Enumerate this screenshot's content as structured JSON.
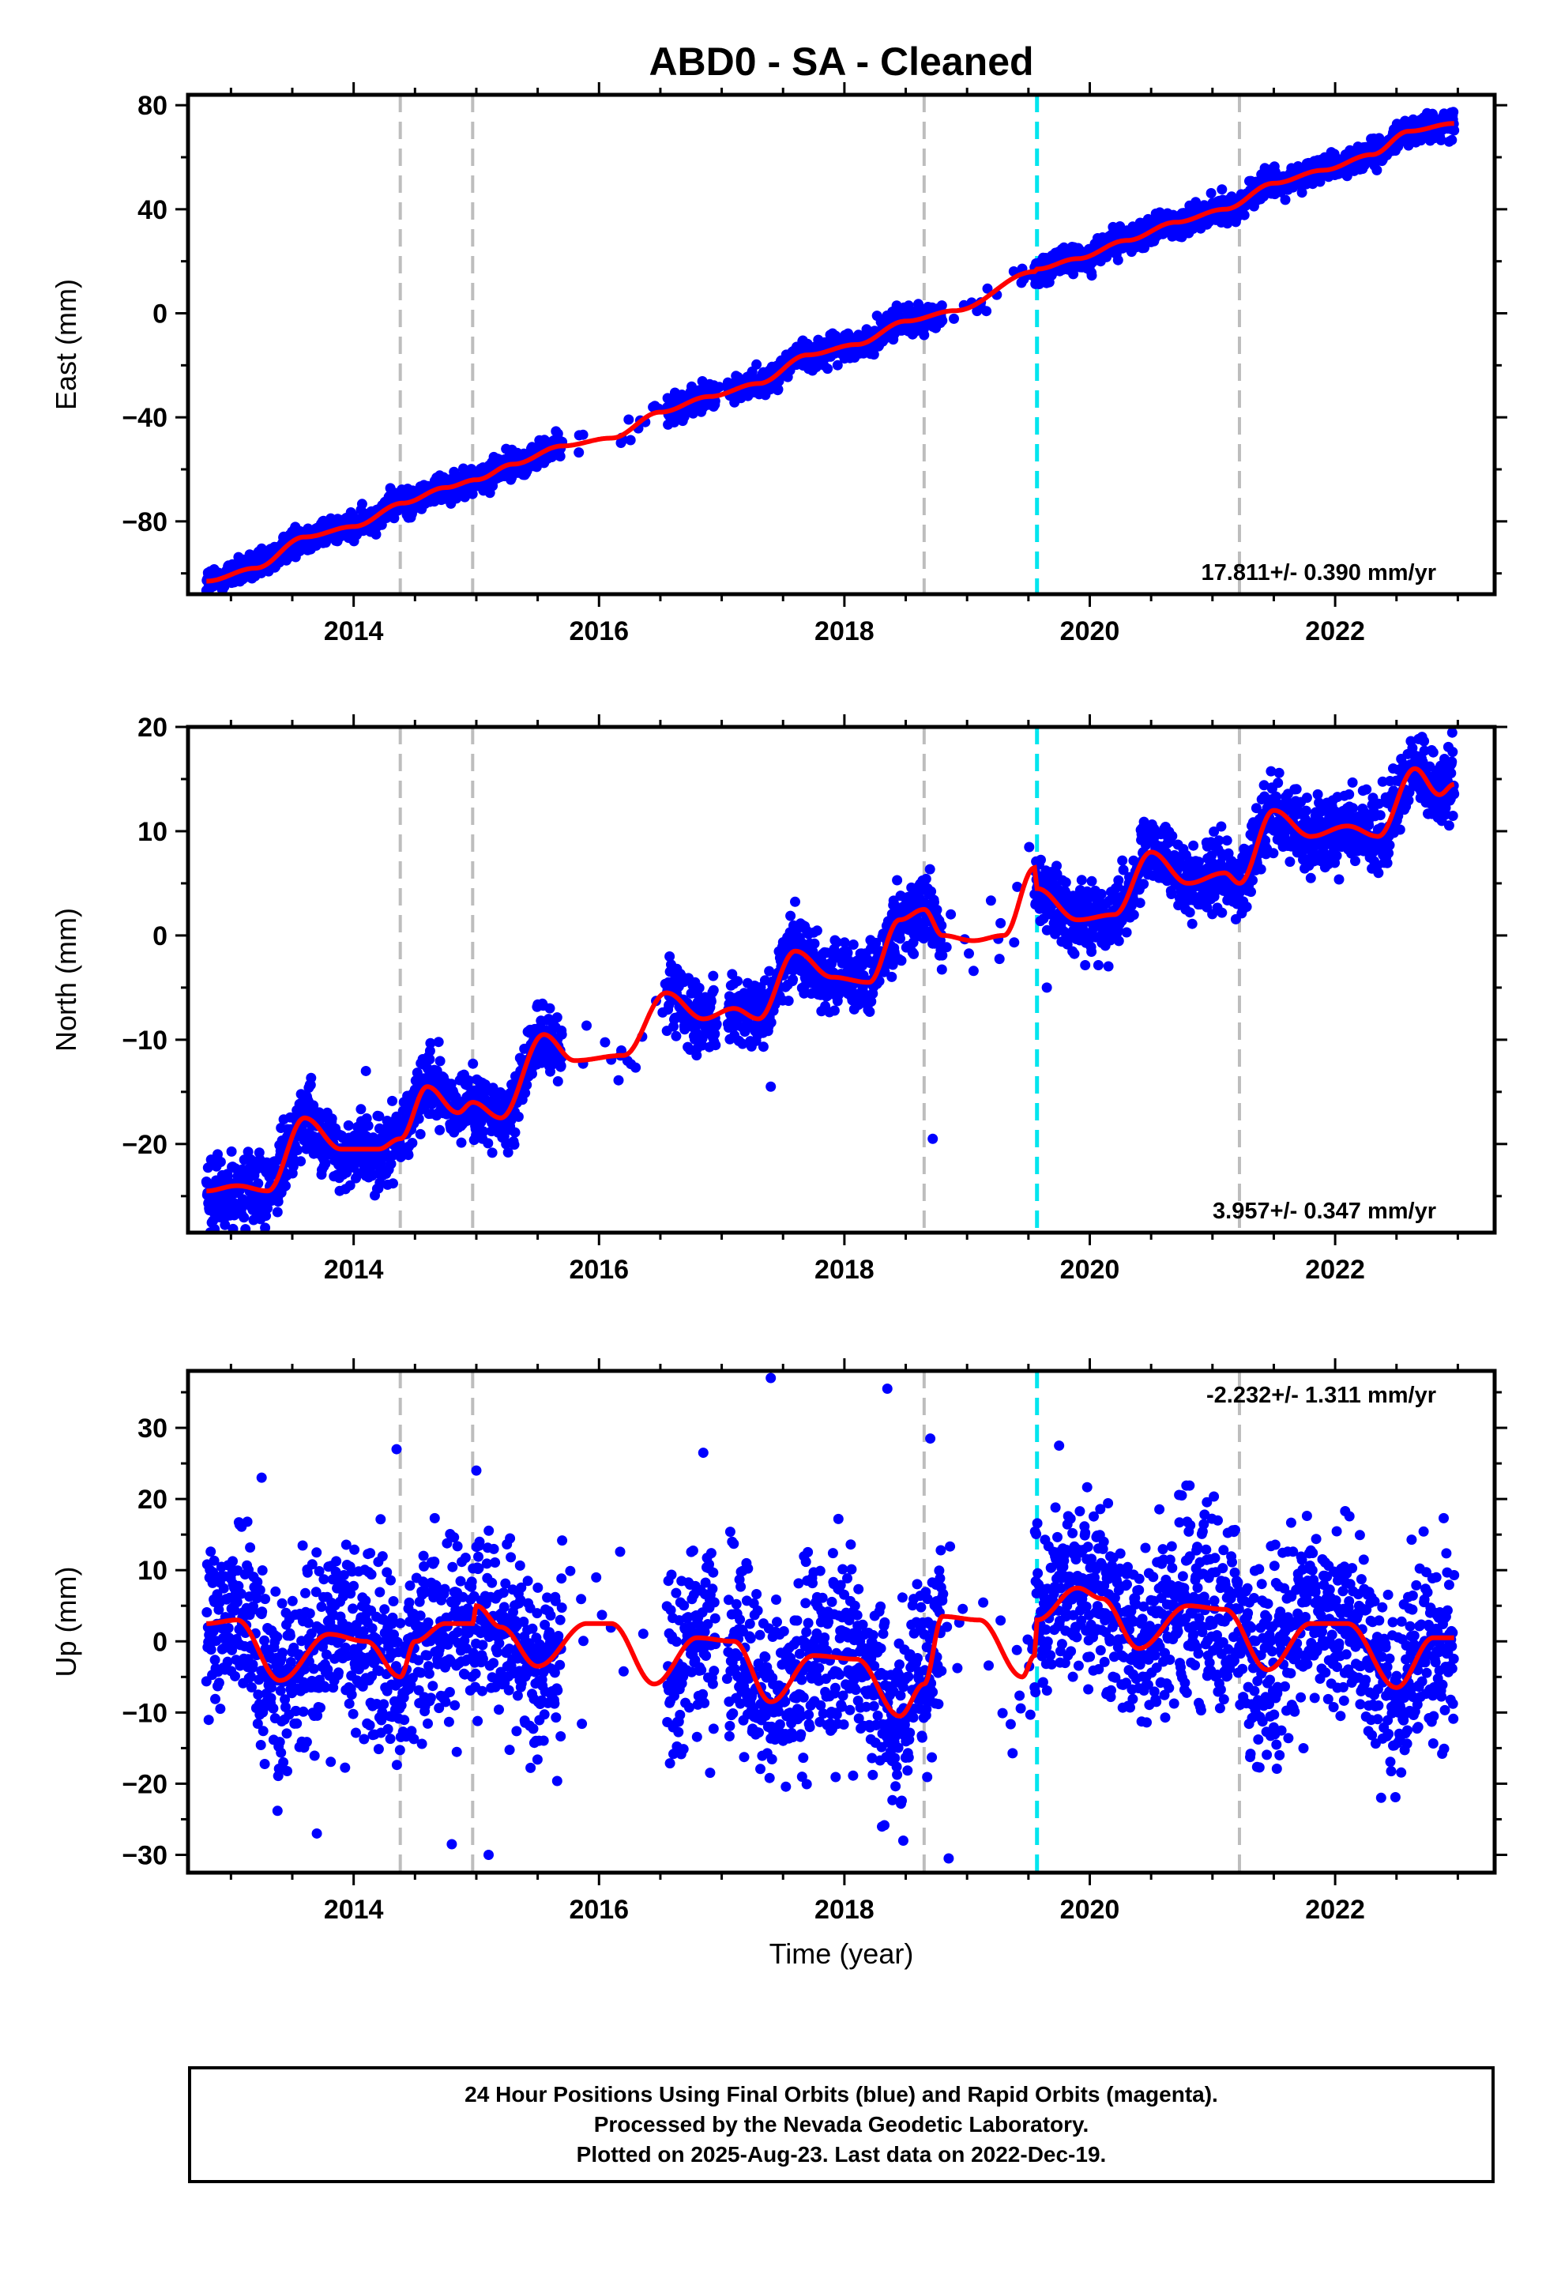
{
  "chart_data": {
    "title": "ABD0  - SA - Cleaned",
    "xlabel": "Time (year)",
    "xlim": [
      2012.65,
      2023.3
    ],
    "xticks": [
      2014,
      2016,
      2018,
      2020,
      2022
    ],
    "x_minor_step": 0.5,
    "vlines_gray": [
      2014.38,
      2014.97,
      2018.65,
      2021.22
    ],
    "vlines_cyan": [
      2019.57
    ],
    "data_span": [
      2012.8,
      2022.97
    ],
    "gaps": [
      [
        2015.7,
        2016.55
      ],
      [
        2016.95,
        2017.05
      ],
      [
        2018.8,
        2019.55
      ]
    ],
    "colors": {
      "points": "#0000ff",
      "model": "#ff0000",
      "gray_line": "#bdbdbd",
      "cyan_line": "#00e5ee"
    },
    "panels": [
      {
        "id": "east",
        "type": "scatter",
        "ylabel": "East (mm)",
        "ylim": [
          -108,
          84
        ],
        "yticks": [
          -80,
          -40,
          0,
          40,
          80
        ],
        "y_minor_step": 20,
        "rate_label": "17.811+/- 0.390 mm/yr",
        "rate_position": "bottom-right",
        "noise": 2.6,
        "model_points": [
          [
            2012.8,
            -103
          ],
          [
            2013.2,
            -98
          ],
          [
            2013.6,
            -86
          ],
          [
            2014.0,
            -82
          ],
          [
            2014.4,
            -73
          ],
          [
            2014.75,
            -67
          ],
          [
            2015.0,
            -64
          ],
          [
            2015.3,
            -58
          ],
          [
            2015.7,
            -51
          ],
          [
            2016.1,
            -48
          ],
          [
            2016.5,
            -38
          ],
          [
            2016.9,
            -32
          ],
          [
            2017.3,
            -27
          ],
          [
            2017.7,
            -16
          ],
          [
            2018.1,
            -12
          ],
          [
            2018.5,
            -3
          ],
          [
            2018.9,
            1
          ],
          [
            2019.55,
            16
          ],
          [
            2019.57,
            17
          ],
          [
            2019.9,
            21
          ],
          [
            2020.3,
            28
          ],
          [
            2020.7,
            35
          ],
          [
            2021.1,
            40
          ],
          [
            2021.5,
            50
          ],
          [
            2021.9,
            55
          ],
          [
            2022.3,
            61
          ],
          [
            2022.6,
            70
          ],
          [
            2022.97,
            73
          ]
        ],
        "series": [
          {
            "name": "Final Orbits",
            "color": "#0000ff",
            "note": "daily positions"
          },
          {
            "name": "Model",
            "color": "#ff0000"
          }
        ]
      },
      {
        "id": "north",
        "type": "scatter",
        "ylabel": "North (mm)",
        "ylim": [
          -28.5,
          20
        ],
        "yticks": [
          -20,
          -10,
          0,
          10,
          20
        ],
        "y_minor_step": 5,
        "rate_label": "3.957+/- 0.347 mm/yr",
        "rate_position": "bottom-right",
        "noise": 1.7,
        "model_points": [
          [
            2012.8,
            -24.5
          ],
          [
            2013.05,
            -24.0
          ],
          [
            2013.3,
            -24.5
          ],
          [
            2013.6,
            -17.5
          ],
          [
            2013.9,
            -20.5
          ],
          [
            2014.2,
            -20.5
          ],
          [
            2014.38,
            -19.5
          ],
          [
            2014.6,
            -14.5
          ],
          [
            2014.85,
            -17.0
          ],
          [
            2014.97,
            -16.0
          ],
          [
            2015.2,
            -17.5
          ],
          [
            2015.55,
            -9.5
          ],
          [
            2015.8,
            -12.0
          ],
          [
            2016.2,
            -11.5
          ],
          [
            2016.55,
            -5.5
          ],
          [
            2016.85,
            -8.0
          ],
          [
            2017.1,
            -7.0
          ],
          [
            2017.3,
            -8.0
          ],
          [
            2017.6,
            -1.5
          ],
          [
            2017.9,
            -4.0
          ],
          [
            2018.2,
            -4.5
          ],
          [
            2018.45,
            1.5
          ],
          [
            2018.65,
            2.5
          ],
          [
            2018.8,
            0
          ],
          [
            2019.05,
            -0.5
          ],
          [
            2019.3,
            0
          ],
          [
            2019.55,
            6.5
          ],
          [
            2019.57,
            4.5
          ],
          [
            2019.9,
            1.5
          ],
          [
            2020.2,
            2.0
          ],
          [
            2020.5,
            8.0
          ],
          [
            2020.8,
            5.0
          ],
          [
            2021.1,
            6.0
          ],
          [
            2021.22,
            5.0
          ],
          [
            2021.5,
            12.0
          ],
          [
            2021.8,
            9.5
          ],
          [
            2022.1,
            10.5
          ],
          [
            2022.35,
            9.5
          ],
          [
            2022.65,
            16.0
          ],
          [
            2022.85,
            13.5
          ],
          [
            2022.97,
            14.5
          ]
        ],
        "outliers": [
          [
            2018.72,
            -19.5
          ],
          [
            2019.65,
            -5.0
          ],
          [
            2014.1,
            -13.0
          ],
          [
            2017.4,
            -14.5
          ],
          [
            2015.05,
            -19.5
          ]
        ],
        "series": [
          {
            "name": "Final Orbits",
            "color": "#0000ff",
            "note": "daily positions"
          },
          {
            "name": "Model",
            "color": "#ff0000"
          }
        ]
      },
      {
        "id": "up",
        "type": "scatter",
        "ylabel": "Up (mm)",
        "ylim": [
          -32.5,
          38
        ],
        "yticks": [
          -30,
          -20,
          -10,
          0,
          10,
          20,
          30
        ],
        "y_minor_step": 5,
        "rate_label": "-2.232+/- 1.311 mm/yr",
        "rate_position": "top-right",
        "noise": 6.5,
        "model_points": [
          [
            2012.8,
            2.5
          ],
          [
            2013.05,
            3.0
          ],
          [
            2013.4,
            -5.5
          ],
          [
            2013.8,
            1.0
          ],
          [
            2014.1,
            0
          ],
          [
            2014.38,
            -5.0
          ],
          [
            2014.5,
            0
          ],
          [
            2014.75,
            2.5
          ],
          [
            2014.97,
            2.5
          ],
          [
            2015.0,
            5.0
          ],
          [
            2015.2,
            2.0
          ],
          [
            2015.5,
            -3.5
          ],
          [
            2015.9,
            2.5
          ],
          [
            2016.1,
            2.5
          ],
          [
            2016.45,
            -6.0
          ],
          [
            2016.8,
            0.5
          ],
          [
            2017.1,
            0
          ],
          [
            2017.4,
            -8.5
          ],
          [
            2017.75,
            -2.0
          ],
          [
            2018.1,
            -2.5
          ],
          [
            2018.45,
            -10.5
          ],
          [
            2018.65,
            -6.0
          ],
          [
            2018.8,
            3.5
          ],
          [
            2019.1,
            3.0
          ],
          [
            2019.45,
            -5.0
          ],
          [
            2019.55,
            -2.0
          ],
          [
            2019.57,
            3.0
          ],
          [
            2019.9,
            7.5
          ],
          [
            2020.1,
            6.0
          ],
          [
            2020.4,
            -1.0
          ],
          [
            2020.8,
            5.0
          ],
          [
            2021.1,
            4.5
          ],
          [
            2021.45,
            -4.0
          ],
          [
            2021.8,
            2.5
          ],
          [
            2022.1,
            2.5
          ],
          [
            2022.5,
            -6.5
          ],
          [
            2022.8,
            0.5
          ],
          [
            2022.97,
            0.5
          ]
        ],
        "outliers": [
          [
            2017.4,
            37.0
          ],
          [
            2018.35,
            35.5
          ],
          [
            2018.85,
            -30.5
          ],
          [
            2015.1,
            -30.0
          ],
          [
            2013.7,
            -27.0
          ],
          [
            2014.8,
            -28.5
          ],
          [
            2018.48,
            -28.0
          ],
          [
            2018.7,
            28.5
          ],
          [
            2019.75,
            27.5
          ],
          [
            2014.35,
            27.0
          ],
          [
            2016.85,
            26.5
          ],
          [
            2015.0,
            24.0
          ],
          [
            2013.25,
            23.0
          ],
          [
            2020.75,
            20.5
          ]
        ],
        "series": [
          {
            "name": "Final Orbits",
            "color": "#0000ff",
            "note": "daily positions"
          },
          {
            "name": "Model",
            "color": "#ff0000"
          }
        ]
      }
    ]
  },
  "footer": {
    "line1": "24 Hour Positions Using Final Orbits (blue) and Rapid Orbits (magenta).",
    "line2": "Processed by the Nevada Geodetic Laboratory.",
    "line3": "Plotted on 2025-Aug-23. Last data on 2022-Dec-19."
  }
}
